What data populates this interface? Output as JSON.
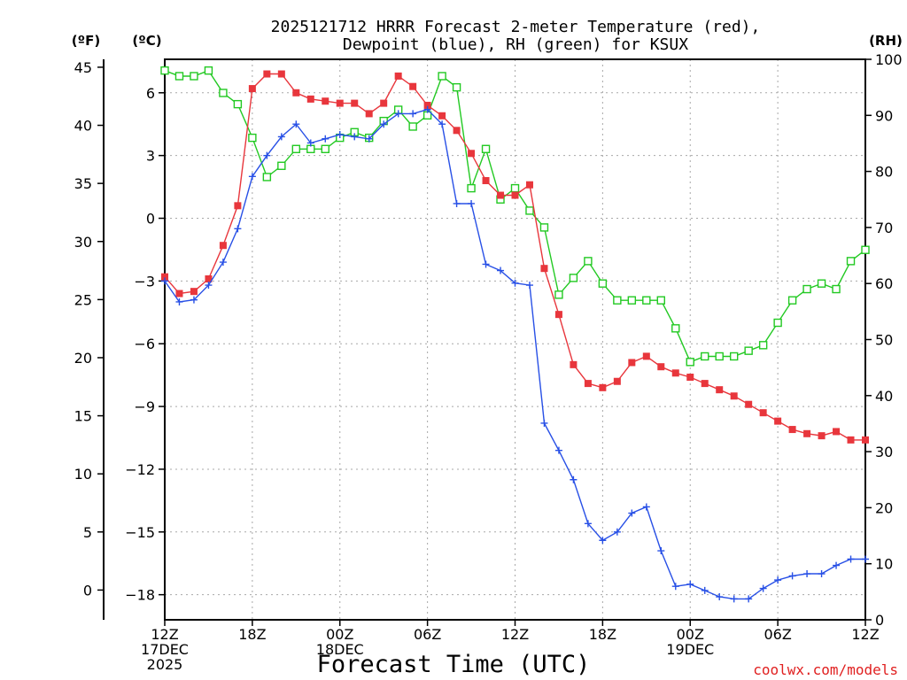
{
  "chart_data": {
    "type": "line",
    "title_line1": "2025121712 HRRR Forecast 2-meter Temperature (red),",
    "title_line2": "Dewpoint (blue), RH (green) for KSUX",
    "xlabel": "Forecast Time (UTC)",
    "credit": "coolwx.com/models",
    "left_unit_f": "(ºF)",
    "left_unit_c": "(ºC)",
    "right_unit": "(RH)",
    "x_range": [
      0,
      48
    ],
    "c_range": [
      -19.2,
      7.6
    ],
    "f_ticks": [
      0,
      5,
      10,
      15,
      20,
      25,
      30,
      35,
      40,
      45
    ],
    "c_ticks": [
      6,
      3,
      0,
      -3,
      -6,
      -9,
      -12,
      -15,
      -18
    ],
    "rh_range": [
      0,
      100
    ],
    "rh_ticks": [
      0,
      10,
      20,
      30,
      40,
      50,
      60,
      70,
      80,
      90,
      100
    ],
    "x_ticks": [
      {
        "hour": 0,
        "lines": [
          "12Z",
          "17DEC",
          "2025"
        ]
      },
      {
        "hour": 6,
        "lines": [
          "18Z"
        ]
      },
      {
        "hour": 12,
        "lines": [
          "00Z",
          "18DEC"
        ]
      },
      {
        "hour": 18,
        "lines": [
          "06Z"
        ]
      },
      {
        "hour": 24,
        "lines": [
          "12Z"
        ]
      },
      {
        "hour": 30,
        "lines": [
          "18Z"
        ]
      },
      {
        "hour": 36,
        "lines": [
          "00Z",
          "19DEC"
        ]
      },
      {
        "hour": 42,
        "lines": [
          "06Z"
        ]
      },
      {
        "hour": 48,
        "lines": [
          "12Z"
        ]
      }
    ],
    "grid": true,
    "series": [
      {
        "name": "Temperature",
        "color": "#e8363c",
        "marker": "filled-square",
        "axis": "C",
        "values": [
          -2.8,
          -3.6,
          -3.5,
          -2.9,
          -1.3,
          0.6,
          6.2,
          6.9,
          6.9,
          6.0,
          5.7,
          5.6,
          5.5,
          5.5,
          5.0,
          5.5,
          6.8,
          6.3,
          5.4,
          4.9,
          4.2,
          3.1,
          1.8,
          1.1,
          1.1,
          1.6,
          -2.4,
          -4.6,
          -7.0,
          -7.9,
          -8.1,
          -7.8,
          -6.9,
          -6.6,
          -7.1,
          -7.4,
          -7.6,
          -7.9,
          -8.2,
          -8.5,
          -8.9,
          -9.3,
          -9.7,
          -10.1,
          -10.3,
          -10.4,
          -10.2,
          -10.6,
          -10.6
        ]
      },
      {
        "name": "Dewpoint",
        "color": "#2850e6",
        "marker": "plus",
        "axis": "C",
        "values": [
          -3.0,
          -4.0,
          -3.9,
          -3.2,
          -2.1,
          -0.5,
          2.0,
          3.0,
          3.9,
          4.5,
          3.6,
          3.8,
          4.0,
          3.9,
          3.8,
          4.5,
          5.0,
          5.0,
          5.2,
          4.5,
          0.7,
          0.7,
          -2.2,
          -2.5,
          -3.1,
          -3.2,
          -9.8,
          -11.1,
          -12.5,
          -14.6,
          -15.4,
          -15.0,
          -14.1,
          -13.8,
          -15.9,
          -17.6,
          -17.5,
          -17.8,
          -18.1,
          -18.2,
          -18.2,
          -17.7,
          -17.3,
          -17.1,
          -17.0,
          -17.0,
          -16.6,
          -16.3,
          -16.3
        ]
      },
      {
        "name": "RH",
        "color": "#22c922",
        "marker": "open-square",
        "axis": "RH",
        "values": [
          98,
          97,
          97,
          98,
          94,
          92,
          86,
          79,
          81,
          84,
          84,
          84,
          86,
          87,
          86,
          89,
          91,
          88,
          90,
          97,
          95,
          77,
          84,
          75,
          77,
          73,
          70,
          58,
          61,
          64,
          60,
          57,
          57,
          57,
          57,
          52,
          46,
          47,
          47,
          47,
          48,
          49,
          53,
          57,
          59,
          60,
          59,
          64,
          66
        ]
      }
    ]
  }
}
